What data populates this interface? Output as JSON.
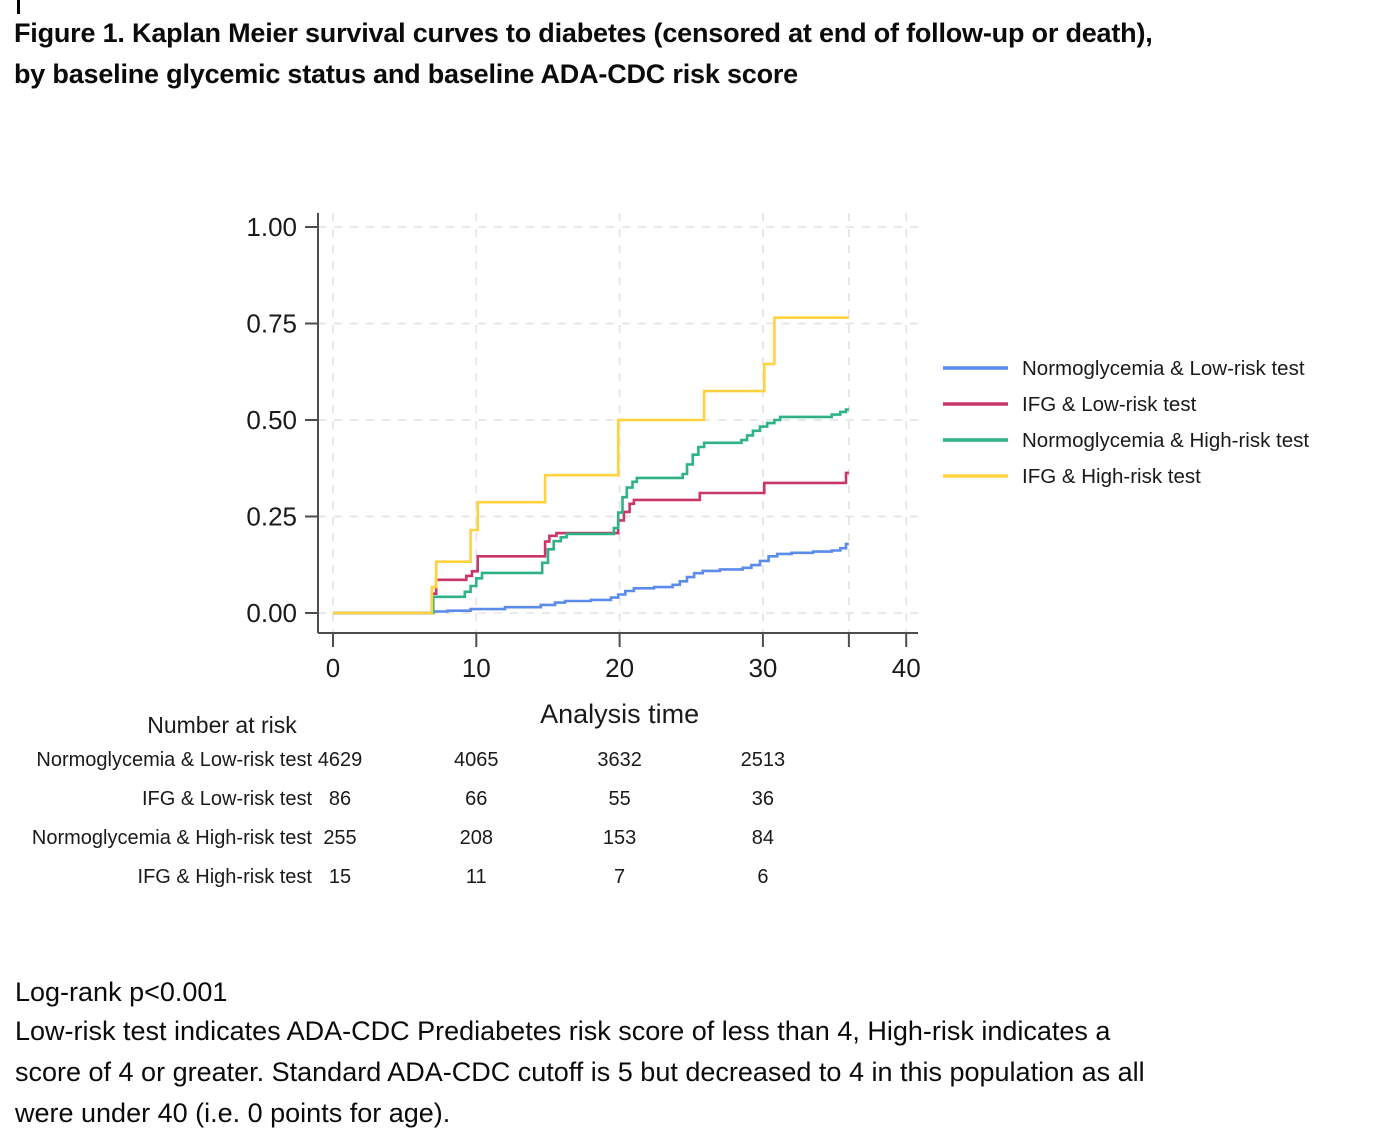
{
  "title": {
    "lines": [
      "Figure 1. Kaplan Meier survival curves to diabetes (censored at end of follow-up or death),",
      "by baseline glycemic status and baseline ADA-CDC risk score"
    ]
  },
  "chart_data": {
    "type": "line",
    "subtype": "kaplan-meier-step",
    "xlabel": "Analysis time",
    "ylabel": "",
    "xlim": [
      0,
      40
    ],
    "ylim": [
      0,
      1
    ],
    "grid": "dashed",
    "legend_position": "right",
    "x_ticks": [
      {
        "t": 0,
        "label": "0"
      },
      {
        "t": 10,
        "label": "10"
      },
      {
        "t": 20,
        "label": "20"
      },
      {
        "t": 30,
        "label": "30"
      },
      {
        "t": 36,
        "label": ""
      },
      {
        "t": 40,
        "label": "40"
      }
    ],
    "y_ticks": [
      {
        "v": 0.0,
        "label": "0.00"
      },
      {
        "v": 0.25,
        "label": "0.25"
      },
      {
        "v": 0.5,
        "label": "0.50"
      },
      {
        "v": 0.75,
        "label": "0.75"
      },
      {
        "v": 1.0,
        "label": "1.00"
      }
    ],
    "end_time": 36,
    "series": [
      {
        "name": "Normoglycemia & Low-risk test",
        "color": "#5b8ceb",
        "points": [
          [
            0,
            0
          ],
          [
            6.9,
            0.004
          ],
          [
            8,
            0.006
          ],
          [
            9.6,
            0.01
          ],
          [
            12,
            0.015
          ],
          [
            14.5,
            0.021
          ],
          [
            15.5,
            0.027
          ],
          [
            16.2,
            0.031
          ],
          [
            18,
            0.034
          ],
          [
            19.4,
            0.04
          ],
          [
            19.9,
            0.048
          ],
          [
            20.4,
            0.057
          ],
          [
            21,
            0.064
          ],
          [
            22.4,
            0.067
          ],
          [
            23.7,
            0.073
          ],
          [
            24.2,
            0.082
          ],
          [
            24.7,
            0.093
          ],
          [
            25.2,
            0.103
          ],
          [
            25.8,
            0.109
          ],
          [
            27,
            0.113
          ],
          [
            28.6,
            0.117
          ],
          [
            29.2,
            0.124
          ],
          [
            29.8,
            0.135
          ],
          [
            30.4,
            0.147
          ],
          [
            31,
            0.153
          ],
          [
            32,
            0.156
          ],
          [
            33.5,
            0.159
          ],
          [
            34.8,
            0.162
          ],
          [
            35.4,
            0.168
          ],
          [
            35.8,
            0.179
          ]
        ]
      },
      {
        "name": "IFG & Low-risk test",
        "color": "#c93766",
        "points": [
          [
            0,
            0
          ],
          [
            6.9,
            0.05
          ],
          [
            7.2,
            0.086
          ],
          [
            9.3,
            0.096
          ],
          [
            9.7,
            0.108
          ],
          [
            10.1,
            0.147
          ],
          [
            14.8,
            0.185
          ],
          [
            15.1,
            0.2
          ],
          [
            15.6,
            0.207
          ],
          [
            19.9,
            0.24
          ],
          [
            20.3,
            0.262
          ],
          [
            20.7,
            0.283
          ],
          [
            21,
            0.293
          ],
          [
            25.6,
            0.311
          ],
          [
            30.1,
            0.337
          ],
          [
            35.8,
            0.363
          ]
        ]
      },
      {
        "name": "Normoglycemia & High-risk test",
        "color": "#2fb386",
        "points": [
          [
            0,
            0
          ],
          [
            7,
            0.042
          ],
          [
            9.2,
            0.055
          ],
          [
            9.6,
            0.07
          ],
          [
            10,
            0.09
          ],
          [
            10.4,
            0.104
          ],
          [
            14.6,
            0.13
          ],
          [
            15,
            0.165
          ],
          [
            15.4,
            0.186
          ],
          [
            15.9,
            0.196
          ],
          [
            16.3,
            0.205
          ],
          [
            19.6,
            0.22
          ],
          [
            19.9,
            0.26
          ],
          [
            20.2,
            0.3
          ],
          [
            20.5,
            0.325
          ],
          [
            20.9,
            0.34
          ],
          [
            21.2,
            0.35
          ],
          [
            24.4,
            0.36
          ],
          [
            24.7,
            0.385
          ],
          [
            25.1,
            0.41
          ],
          [
            25.5,
            0.43
          ],
          [
            25.9,
            0.441
          ],
          [
            28.5,
            0.448
          ],
          [
            28.9,
            0.46
          ],
          [
            29.3,
            0.472
          ],
          [
            29.8,
            0.483
          ],
          [
            30.3,
            0.492
          ],
          [
            30.8,
            0.5
          ],
          [
            31.2,
            0.508
          ],
          [
            34.8,
            0.514
          ],
          [
            35.4,
            0.521
          ],
          [
            35.8,
            0.527
          ]
        ]
      },
      {
        "name": "IFG & High-risk test",
        "color": "#ffd23e",
        "points": [
          [
            0,
            0
          ],
          [
            6.9,
            0.067
          ],
          [
            7.2,
            0.133
          ],
          [
            9.6,
            0.215
          ],
          [
            10.1,
            0.287
          ],
          [
            14.8,
            0.357
          ],
          [
            19.9,
            0.5
          ],
          [
            25.9,
            0.575
          ],
          [
            30.1,
            0.645
          ],
          [
            30.8,
            0.765
          ]
        ]
      }
    ]
  },
  "risk_table": {
    "header": "Number at risk",
    "time_points": [
      0,
      10,
      20,
      30
    ],
    "rows": [
      {
        "label": "Normoglycemia & Low-risk test",
        "counts": [
          "4629",
          "4065",
          "3632",
          "2513"
        ]
      },
      {
        "label": "IFG & Low-risk test",
        "counts": [
          "86",
          "66",
          "55",
          "36"
        ]
      },
      {
        "label": "Normoglycemia & High-risk test",
        "counts": [
          "255",
          "208",
          "153",
          "84"
        ]
      },
      {
        "label": "IFG & High-risk test",
        "counts": [
          "15",
          "11",
          "7",
          "6"
        ]
      }
    ]
  },
  "footer": {
    "logrank": "Log-rank p<0.001",
    "note_lines": [
      "Low-risk test indicates ADA-CDC Prediabetes risk score of less than 4, High-risk indicates a",
      "score of 4 or greater. Standard ADA-CDC cutoff is 5 but decreased to 4 in this population as all",
      "were under 40 (i.e. 0 points for age)."
    ]
  },
  "style": {
    "axis_color": "#4d4d4d",
    "grid_color": "#e2e2e2",
    "text_color": "#1a1a1a"
  }
}
